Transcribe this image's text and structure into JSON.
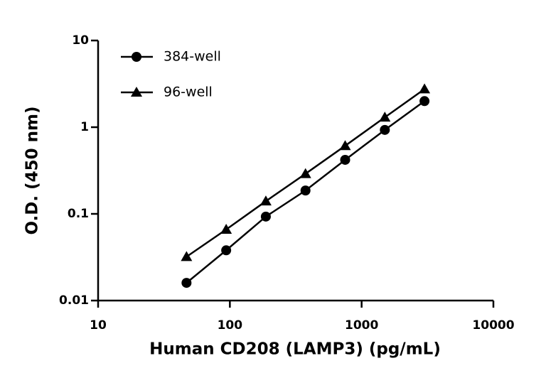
{
  "chart_data": {
    "type": "line",
    "x_label": "Human CD208 (LAMP3) (pg/mL)",
    "y_label": "O.D. (450 nm)",
    "x": [
      46.875,
      93.75,
      187.5,
      375,
      750,
      1500,
      3000
    ],
    "series": [
      {
        "name": "384-well",
        "color": "#000000",
        "marker": "circle",
        "values": [
          0.016,
          0.038,
          0.093,
          0.186,
          0.42,
          0.93,
          2.0
        ]
      },
      {
        "name": "96-well",
        "color": "#000000",
        "marker": "triangle",
        "values": [
          0.032,
          0.066,
          0.14,
          0.29,
          0.61,
          1.3,
          2.75
        ]
      }
    ],
    "xlim": [
      10,
      10000
    ],
    "xticks": [
      10,
      100,
      1000,
      10000
    ],
    "xscale": "log",
    "ylim": [
      0.01,
      10
    ],
    "yticks": [
      0.01,
      0.1,
      1,
      10
    ],
    "yscale": "log",
    "grid": false,
    "legend": "upper left"
  }
}
